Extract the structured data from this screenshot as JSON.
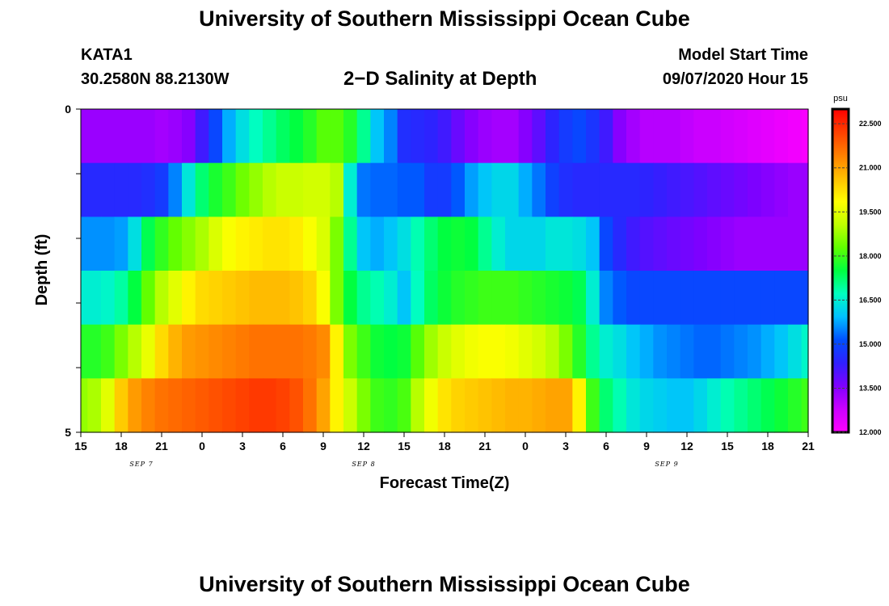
{
  "header": {
    "title": "University of Southern Mississippi Ocean Cube",
    "station": "KATA1",
    "coords": "30.2580N 88.2130W",
    "subtitle": "2−D Salinity at Depth",
    "start_label": "Model Start Time",
    "start_value": "09/07/2020 Hour 15"
  },
  "footer": {
    "title": "University of Southern Mississippi Ocean Cube"
  },
  "chart_data": {
    "type": "heatmap",
    "xlabel": "Forecast Time(Z)",
    "ylabel": "Depth (ft)",
    "x_tick_labels": [
      "15",
      "18",
      "21",
      "0",
      "3",
      "6",
      "9",
      "12",
      "15",
      "18",
      "21",
      "0",
      "3",
      "6",
      "9",
      "12",
      "15",
      "18",
      "21"
    ],
    "date_labels": [
      {
        "text": "SEP 7",
        "at_tick": 1.5
      },
      {
        "text": "SEP 8",
        "at_tick": 7
      },
      {
        "text": "SEP 9",
        "at_tick": 14.5
      }
    ],
    "y_tick_labels": [
      "0",
      "5"
    ],
    "ylim": [
      0,
      5
    ],
    "colorbar": {
      "unit": "psu",
      "min": 12.0,
      "max": 23.0,
      "ticks": [
        "22.500",
        "21.000",
        "19.500",
        "18.000",
        "16.500",
        "15.000",
        "13.500",
        "12.000"
      ],
      "colors": [
        "#ff00ff",
        "#cc00ff",
        "#8000ff",
        "#3020ff",
        "#0050ff",
        "#00c0ff",
        "#00ffc0",
        "#00ff40",
        "#60ff00",
        "#c0ff00",
        "#ffff00",
        "#ffc000",
        "#ff8000",
        "#ff4000",
        "#ff0000"
      ]
    },
    "hours": [
      15,
      16,
      17,
      18,
      19,
      20,
      21,
      22,
      23,
      24,
      25,
      26,
      27,
      28,
      29,
      30,
      31,
      32,
      33,
      34,
      35,
      36,
      37,
      38,
      39,
      40,
      41,
      42,
      43,
      44,
      45,
      46,
      47,
      48,
      49,
      50,
      51,
      52,
      53,
      54,
      55,
      56,
      57,
      58,
      59,
      60,
      61,
      62,
      63,
      64,
      65,
      66,
      67,
      68,
      69
    ],
    "depth_layers": [
      0,
      1,
      2,
      3,
      4,
      5
    ],
    "salinity": [
      [
        13.3,
        13.3,
        13.3,
        13.3,
        13.3,
        13.3,
        13.2,
        13.3,
        13.5,
        14.2,
        15.0,
        15.8,
        16.3,
        16.7,
        17.0,
        17.3,
        17.5,
        17.8,
        18.2,
        18.2,
        17.8,
        17.0,
        16.0,
        15.5,
        14.6,
        14.5,
        14.4,
        14.2,
        13.8,
        13.5,
        13.3,
        13.2,
        13.2,
        13.5,
        13.9,
        14.4,
        14.8,
        15.0,
        14.7,
        14.2,
        13.5,
        13.2,
        13.0,
        13.0,
        13.0,
        12.9,
        12.8,
        12.8,
        12.7,
        12.6,
        12.5,
        12.4,
        12.3,
        12.2,
        12.1
      ],
      [
        14.5,
        14.5,
        14.5,
        14.5,
        14.5,
        14.6,
        14.8,
        15.5,
        16.4,
        17.2,
        17.7,
        18.0,
        18.4,
        18.7,
        19.0,
        19.2,
        19.2,
        19.3,
        19.3,
        19.0,
        16.5,
        15.4,
        15.3,
        15.3,
        15.2,
        15.2,
        14.8,
        14.8,
        15.2,
        15.7,
        16.0,
        16.2,
        16.2,
        15.8,
        15.4,
        14.9,
        14.6,
        14.5,
        14.5,
        14.5,
        14.5,
        14.5,
        14.4,
        14.3,
        14.2,
        14.1,
        14.0,
        13.9,
        13.8,
        13.7,
        13.6,
        13.5,
        13.4,
        13.3,
        13.3
      ],
      [
        15.6,
        15.6,
        15.6,
        15.7,
        16.3,
        17.4,
        17.9,
        18.3,
        18.6,
        18.9,
        19.4,
        19.8,
        20.0,
        20.1,
        20.2,
        20.2,
        20.1,
        19.8,
        19.4,
        18.5,
        17.0,
        16.0,
        15.8,
        16.0,
        16.3,
        16.8,
        17.2,
        17.5,
        17.6,
        17.5,
        17.0,
        16.5,
        16.2,
        16.2,
        16.2,
        16.4,
        16.4,
        16.3,
        16.0,
        15.0,
        14.5,
        14.2,
        14.0,
        13.9,
        13.8,
        13.7,
        13.6,
        13.5,
        13.4,
        13.3,
        13.3,
        13.3,
        13.3,
        13.3,
        13.3
      ],
      [
        16.5,
        16.5,
        16.6,
        16.9,
        17.5,
        18.3,
        19.0,
        19.5,
        20.0,
        20.3,
        20.4,
        20.5,
        20.6,
        20.7,
        20.7,
        20.7,
        20.6,
        20.4,
        19.8,
        18.5,
        17.5,
        17.0,
        16.8,
        16.5,
        16.0,
        16.7,
        17.3,
        17.6,
        17.8,
        17.9,
        18.0,
        18.0,
        18.0,
        17.9,
        17.8,
        17.7,
        17.6,
        17.4,
        16.5,
        15.5,
        15.2,
        15.0,
        15.0,
        15.0,
        15.0,
        15.0,
        15.0,
        15.0,
        15.0,
        15.0,
        15.0,
        15.0,
        15.0,
        15.0,
        15.0
      ],
      [
        17.8,
        17.8,
        18.0,
        18.5,
        19.0,
        19.6,
        20.3,
        20.8,
        21.1,
        21.2,
        21.3,
        21.4,
        21.5,
        21.6,
        21.6,
        21.6,
        21.6,
        21.5,
        21.3,
        20.0,
        18.5,
        18.0,
        17.6,
        17.5,
        17.6,
        18.2,
        18.8,
        19.2,
        19.5,
        19.7,
        19.8,
        19.8,
        19.7,
        19.5,
        19.3,
        19.0,
        18.5,
        17.8,
        17.0,
        16.5,
        16.3,
        16.0,
        15.8,
        15.6,
        15.5,
        15.4,
        15.3,
        15.3,
        15.4,
        15.5,
        15.6,
        15.8,
        16.0,
        16.3,
        16.6
      ],
      [
        18.7,
        18.9,
        19.5,
        20.5,
        21.1,
        21.4,
        21.6,
        21.7,
        21.8,
        21.9,
        22.0,
        22.1,
        22.2,
        22.3,
        22.3,
        22.2,
        22.0,
        21.6,
        21.0,
        20.0,
        19.2,
        18.5,
        18.0,
        17.9,
        18.1,
        19.0,
        19.7,
        20.2,
        20.4,
        20.5,
        20.6,
        20.7,
        20.8,
        20.8,
        20.9,
        21.0,
        21.0,
        20.0,
        18.0,
        17.2,
        16.8,
        16.4,
        16.2,
        16.1,
        16.0,
        16.0,
        16.2,
        16.5,
        16.8,
        17.0,
        17.2,
        17.4,
        17.6,
        17.8,
        18.0
      ]
    ]
  }
}
